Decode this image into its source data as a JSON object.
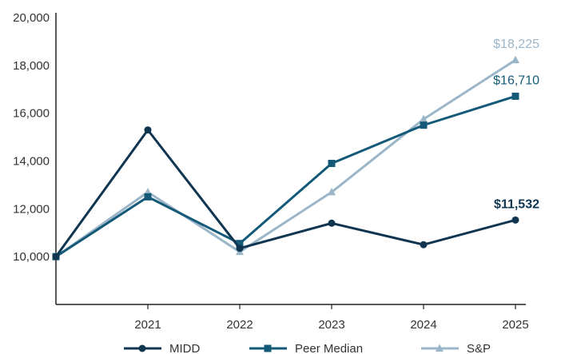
{
  "chart_data": {
    "type": "line",
    "categories": [
      "",
      "2021",
      "2022",
      "2023",
      "2024",
      "2025"
    ],
    "ylim": [
      8000,
      20000
    ],
    "yticks": [
      10000,
      12000,
      14000,
      16000,
      18000,
      20000
    ],
    "ytick_labels": [
      "10,000",
      "12,000",
      "14,000",
      "16,000",
      "18,000",
      "20,000"
    ],
    "grid": false,
    "legend_position": "bottom",
    "series": [
      {
        "name": "MIDD",
        "marker": "circle",
        "color": "#0f3550",
        "values": [
          10000,
          15300,
          10350,
          11400,
          10500,
          11532
        ],
        "end_label": "$11,532",
        "end_label_bold": true
      },
      {
        "name": "Peer Median",
        "marker": "square",
        "color": "#145a78",
        "values": [
          10000,
          12500,
          10550,
          13900,
          15500,
          16710
        ],
        "end_label": "$16,710",
        "end_label_bold": false
      },
      {
        "name": "S&P",
        "marker": "triangle",
        "color": "#9bb6c9",
        "values": [
          10000,
          12700,
          10200,
          12700,
          15750,
          18225
        ],
        "end_label": "$18,225",
        "end_label_bold": false
      }
    ]
  }
}
